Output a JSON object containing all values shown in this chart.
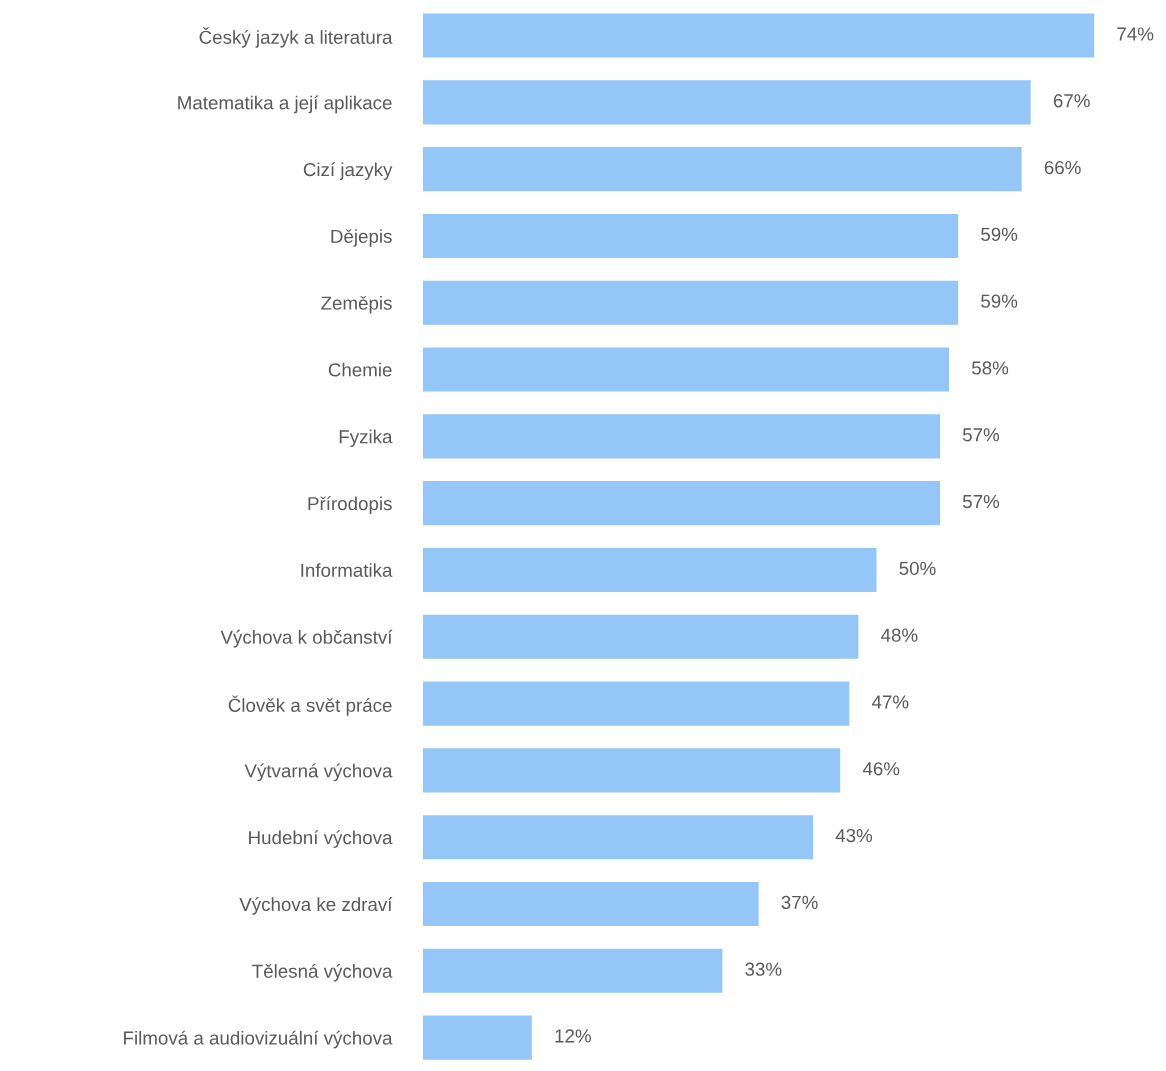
{
  "chart_data": {
    "type": "bar",
    "orientation": "horizontal",
    "categories": [
      "Český jazyk a literatura",
      "Matematika a její aplikace",
      "Cizí jazyky",
      "Dějepis",
      "Zeměpis",
      "Chemie",
      "Fyzika",
      "Přírodopis",
      "Informatika",
      "Výchova k občanství",
      "Člověk a svět práce",
      "Výtvarná výchova",
      "Hudební výchova",
      "Výchova ke zdraví",
      "Tělesná výchova",
      "Filmová a audiovizuální výchova"
    ],
    "values": [
      74,
      67,
      66,
      59,
      59,
      58,
      57,
      57,
      50,
      48,
      47,
      46,
      43,
      37,
      33,
      12
    ],
    "value_labels": [
      "74%",
      "67%",
      "66%",
      "59%",
      "59%",
      "58%",
      "57%",
      "57%",
      "50%",
      "48%",
      "47%",
      "46%",
      "43%",
      "37%",
      "33%",
      "12%"
    ],
    "color": "#95c6f8",
    "grid": false,
    "legend": false
  }
}
